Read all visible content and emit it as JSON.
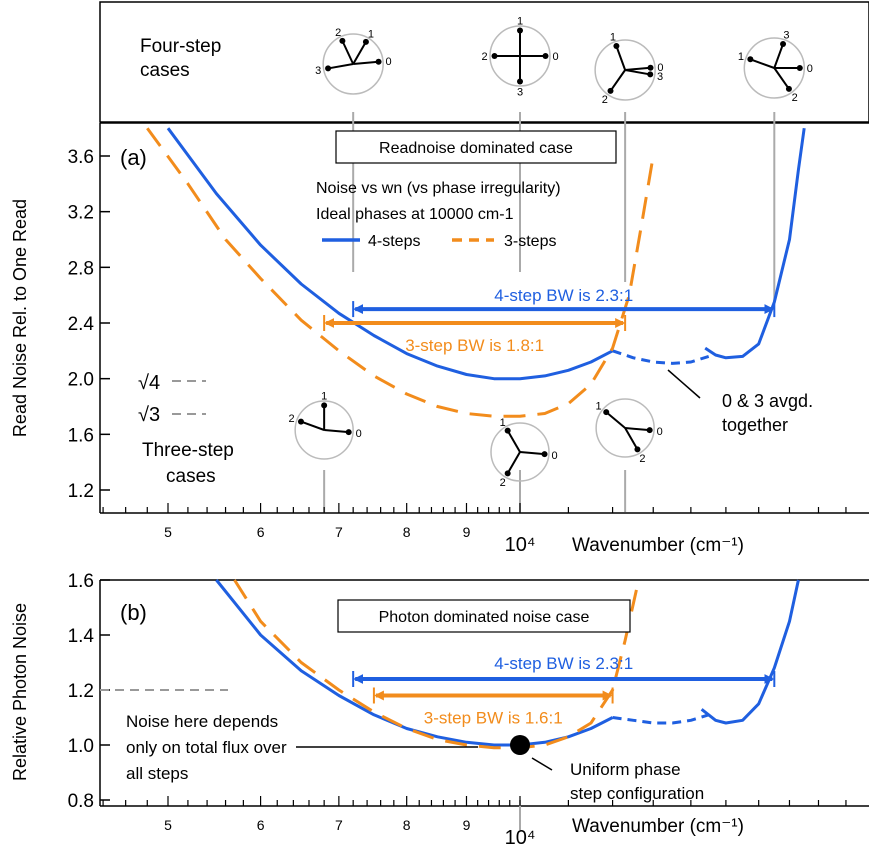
{
  "colors": {
    "four_step": "#1f5fe0",
    "three_step": "#f28c1c",
    "axis": "#000000",
    "dashed_ref": "#999999",
    "marker_line": "#aaaaaa"
  },
  "top_panel": {
    "four_step_label_line1": "Four-step",
    "four_step_label_line2": "cases",
    "phasors": [
      {
        "wavenumber": 7200,
        "labels": [
          "2",
          "1",
          "3",
          "0"
        ]
      },
      {
        "wavenumber": 10000,
        "labels": [
          "1",
          "2",
          "0",
          "3"
        ]
      },
      {
        "wavenumber": 12300,
        "labels": [
          "1",
          "0",
          "3",
          "2"
        ]
      },
      {
        "wavenumber": 16500,
        "labels": [
          "3",
          "1",
          "0",
          "2"
        ]
      }
    ]
  },
  "panel_a": {
    "panel_label": "(a)",
    "box_text": "Readnoise dominated case",
    "subtitle_line1": "Noise vs wn (vs phase irregularity)",
    "subtitle_line2": "Ideal phases at 10000 cm-1",
    "legend": [
      {
        "name": "4-steps",
        "style": "solid"
      },
      {
        "name": "3-steps",
        "style": "dashed"
      }
    ],
    "ylabel": "Read Noise Rel. to One Read",
    "xlabel": "Wavenumber (cm⁻¹)",
    "ref_labels": [
      "√4",
      "√3"
    ],
    "ref_values": [
      2.0,
      1.732
    ],
    "bw4": {
      "text": "4-step BW is 2.3:1",
      "x1": 7200,
      "x2": 16500,
      "y": 2.5
    },
    "bw3": {
      "text": "3-step BW is 1.8:1",
      "x1": 6800,
      "x2": 12300,
      "y": 2.4
    },
    "avg_note_line1": "0 & 3 avgd.",
    "avg_note_line2": "together",
    "three_step_label_line1": "Three-step",
    "three_step_label_line2": "cases",
    "three_phasors": [
      {
        "wavenumber": 6800,
        "labels": [
          "1",
          "2",
          "0"
        ]
      },
      {
        "wavenumber": 10000,
        "labels": [
          "1",
          "0",
          "2"
        ]
      },
      {
        "wavenumber": 12300,
        "labels": [
          "1",
          "0",
          "2"
        ]
      }
    ]
  },
  "panel_b": {
    "panel_label": "(b)",
    "box_text": "Photon dominated noise case",
    "ylabel": "Relative Photon Noise",
    "xlabel": "Wavenumber (cm⁻¹)",
    "bw4": {
      "text": "4-step BW is 2.3:1",
      "x1": 7200,
      "x2": 16500,
      "y": 1.24
    },
    "bw3": {
      "text": "3-step BW is 1.6:1",
      "x1": 7500,
      "x2": 12000,
      "y": 1.18
    },
    "note_line1": "Noise here depends",
    "note_line2": "only on total flux over",
    "note_line3": "all steps",
    "uniform_line1": "Uniform phase",
    "uniform_line2": "step configuration",
    "ref_value": 1.2
  },
  "chart_data": [
    {
      "type": "line",
      "panel": "a",
      "xscale": "log",
      "xlim": [
        4200,
        20000
      ],
      "ylim": [
        1.1,
        3.8
      ],
      "y_ticks": [
        1.2,
        1.6,
        2.0,
        2.4,
        2.8,
        3.2,
        3.6
      ],
      "y_tick_labels": [
        "1.2",
        "1.6",
        "2.0",
        "2.4",
        "2.8",
        "3.2",
        "3.6"
      ],
      "x_major_labels": [
        {
          "x": 5000,
          "text": "5"
        },
        {
          "x": 6000,
          "text": "6"
        },
        {
          "x": 7000,
          "text": "7"
        },
        {
          "x": 8000,
          "text": "8"
        },
        {
          "x": 9000,
          "text": "9"
        },
        {
          "x": 10000,
          "text": "10⁴"
        }
      ],
      "series": [
        {
          "name": "4-steps",
          "style": "solid",
          "x": [
            5000,
            5500,
            6000,
            6500,
            7000,
            7500,
            8000,
            8500,
            9000,
            9500,
            10000,
            10500,
            11000,
            11500,
            12000
          ],
          "y": [
            3.8,
            3.33,
            2.96,
            2.68,
            2.47,
            2.31,
            2.18,
            2.09,
            2.03,
            2.0,
            2.0,
            2.02,
            2.06,
            2.12,
            2.2
          ]
        },
        {
          "name": "4-steps (0 & 3 avgd.)",
          "style": "dashed",
          "x": [
            12000,
            12500,
            13000,
            13500,
            14000,
            14500
          ],
          "y": [
            2.2,
            2.15,
            2.12,
            2.11,
            2.12,
            2.16
          ]
        },
        {
          "name": "4-steps",
          "style": "solid",
          "x": [
            14400,
            14700,
            15000,
            15500,
            16000,
            16500,
            17000,
            17300,
            17500
          ],
          "y": [
            2.22,
            2.17,
            2.15,
            2.16,
            2.25,
            2.55,
            3.0,
            3.5,
            3.8
          ]
        },
        {
          "name": "3-steps",
          "style": "dashed",
          "x": [
            4800,
            5200,
            5600,
            6000,
            6500,
            7000,
            7500,
            8000,
            8500,
            9000,
            9500,
            10000,
            10500,
            11000,
            11500,
            12000,
            12400,
            12700,
            13000
          ],
          "y": [
            3.8,
            3.4,
            3.0,
            2.72,
            2.42,
            2.2,
            2.02,
            1.89,
            1.8,
            1.75,
            1.73,
            1.73,
            1.75,
            1.82,
            1.96,
            2.22,
            2.6,
            3.1,
            3.6
          ]
        }
      ]
    },
    {
      "type": "line",
      "panel": "b",
      "xscale": "log",
      "xlim": [
        4200,
        20000
      ],
      "ylim": [
        0.8,
        1.6
      ],
      "y_ticks": [
        0.8,
        1.0,
        1.2,
        1.4,
        1.6
      ],
      "y_tick_labels": [
        "0.8",
        "1.0",
        "1.2",
        "1.4",
        "1.6"
      ],
      "x_major_labels": [
        {
          "x": 5000,
          "text": "5"
        },
        {
          "x": 6000,
          "text": "6"
        },
        {
          "x": 7000,
          "text": "7"
        },
        {
          "x": 8000,
          "text": "8"
        },
        {
          "x": 9000,
          "text": "9"
        },
        {
          "x": 10000,
          "text": "10⁴"
        }
      ],
      "series": [
        {
          "name": "4-steps",
          "style": "solid",
          "x": [
            5500,
            6000,
            6500,
            7000,
            7500,
            8000,
            8500,
            9000,
            9500,
            10000,
            10500,
            11000,
            11500,
            12000
          ],
          "y": [
            1.6,
            1.4,
            1.27,
            1.18,
            1.11,
            1.06,
            1.03,
            1.01,
            1.0,
            1.0,
            1.01,
            1.03,
            1.06,
            1.1
          ]
        },
        {
          "name": "4-steps (0 & 3 avgd.)",
          "style": "dashed",
          "x": [
            12000,
            12500,
            13000,
            13500,
            14000,
            14500
          ],
          "y": [
            1.1,
            1.09,
            1.08,
            1.08,
            1.09,
            1.11
          ]
        },
        {
          "name": "4-steps",
          "style": "solid",
          "x": [
            14300,
            14700,
            15000,
            15500,
            16000,
            16500,
            17000,
            17300
          ],
          "y": [
            1.13,
            1.09,
            1.08,
            1.09,
            1.15,
            1.28,
            1.45,
            1.6
          ]
        },
        {
          "name": "3-steps",
          "style": "dashed",
          "x": [
            5700,
            6000,
            6500,
            7000,
            7500,
            8000,
            8500,
            9000,
            9500,
            10000,
            10500,
            11000,
            11500,
            12000,
            12300,
            12600
          ],
          "y": [
            1.6,
            1.45,
            1.3,
            1.2,
            1.12,
            1.06,
            1.02,
            1.0,
            0.99,
            0.99,
            1.0,
            1.03,
            1.08,
            1.2,
            1.38,
            1.58
          ]
        }
      ],
      "points": [
        {
          "x": 10000,
          "y": 1.0
        }
      ]
    }
  ]
}
